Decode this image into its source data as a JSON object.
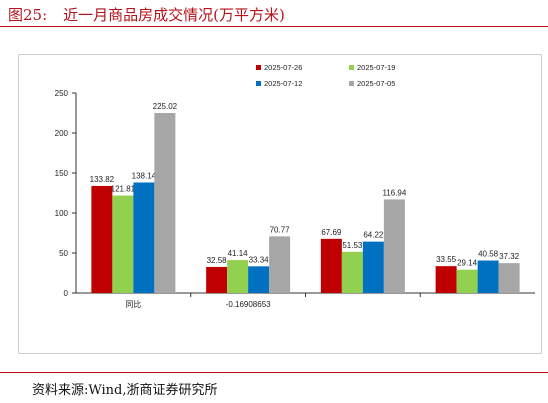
{
  "figure": {
    "title_number": "图25:",
    "title_text": "近一月商品房成交情况(万平方米)",
    "source": "资料来源:Wind,浙商证券研究所"
  },
  "colors": {
    "accent": "#b5121b",
    "series": [
      "#c00000",
      "#92d050",
      "#0070c0",
      "#a6a6a6"
    ]
  },
  "chart_data": {
    "type": "bar",
    "categories": [
      "同比",
      "-0.16908653",
      "",
      ""
    ],
    "series": [
      {
        "name": "2025-07-26",
        "values": [
          133.82,
          32.58,
          67.69,
          33.55
        ]
      },
      {
        "name": "2025-07-19",
        "values": [
          121.81,
          41.14,
          51.53,
          29.14
        ]
      },
      {
        "name": "2025-07-12",
        "values": [
          138.14,
          33.34,
          64.22,
          40.58
        ]
      },
      {
        "name": "2025-07-05",
        "values": [
          225.02,
          70.77,
          116.94,
          37.32
        ]
      }
    ],
    "ylim": [
      0,
      250
    ],
    "yticks": [
      0,
      50,
      100,
      150,
      200,
      250
    ],
    "legend_position": "top",
    "grid": false
  }
}
